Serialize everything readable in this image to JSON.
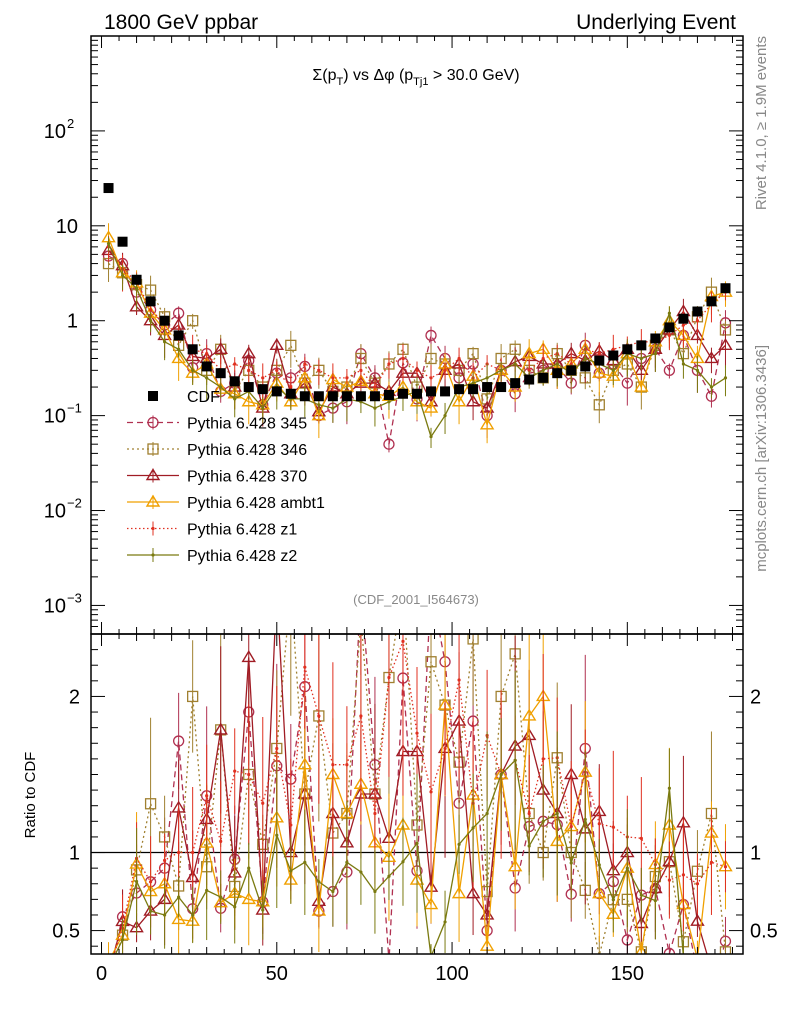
{
  "header": {
    "left": "1800 GeV ppbar",
    "right": "Underlying Event"
  },
  "side_labels": {
    "rivet": "Rivet 4.1.0, ≥ 1.9M events",
    "mcplots": "mcplots.cern.ch [arXiv:1306.3436]"
  },
  "chart_data": {
    "type": "line",
    "title": {
      "sigma": "Σ(p",
      "sub_t": "T",
      "mid": ") vs Δφ (p",
      "sub_tj1": "Tj1",
      "tail": " > 30.0 GeV)"
    },
    "analysis_tag": "(CDF_2001_I564673)",
    "xlabel": "",
    "ylabel_ratio": "Ratio to CDF",
    "xlim": [
      -3,
      183
    ],
    "ylim_main": [
      0.0005,
      1000
    ],
    "ylim_ratio": [
      0.35,
      2.4
    ],
    "yscale_main": "log",
    "x_ticks": [
      {
        "value": 0,
        "label": "0"
      },
      {
        "value": 50,
        "label": "50"
      },
      {
        "value": 100,
        "label": "100"
      },
      {
        "value": 150,
        "label": "150"
      }
    ],
    "y_ticks_main": [
      {
        "value": 0.001,
        "base": "10",
        "exp": "−3"
      },
      {
        "value": 0.01,
        "base": "10",
        "exp": "−2"
      },
      {
        "value": 0.1,
        "base": "10",
        "exp": "−1"
      },
      {
        "value": 1,
        "base": "1",
        "exp": ""
      },
      {
        "value": 10,
        "base": "10",
        "exp": ""
      },
      {
        "value": 100,
        "base": "10",
        "exp": "2"
      }
    ],
    "y_ticks_ratio": [
      {
        "value": 0.5,
        "label": "0.5"
      },
      {
        "value": 1,
        "label": "1"
      },
      {
        "value": 2,
        "label": "2"
      }
    ],
    "data": {
      "name": "CDF",
      "color": "#000000",
      "x": [
        2,
        6,
        10,
        14,
        18,
        22,
        26,
        30,
        34,
        38,
        42,
        46,
        50,
        54,
        58,
        62,
        66,
        70,
        74,
        78,
        82,
        86,
        90,
        94,
        98,
        102,
        106,
        110,
        114,
        118,
        122,
        126,
        130,
        134,
        138,
        142,
        146,
        150,
        154,
        158,
        162,
        166,
        170,
        174,
        178
      ],
      "y": [
        25,
        6.8,
        2.7,
        1.6,
        1.0,
        0.7,
        0.5,
        0.33,
        0.28,
        0.23,
        0.2,
        0.19,
        0.18,
        0.17,
        0.16,
        0.16,
        0.16,
        0.16,
        0.16,
        0.16,
        0.165,
        0.17,
        0.17,
        0.18,
        0.18,
        0.19,
        0.19,
        0.2,
        0.2,
        0.22,
        0.24,
        0.25,
        0.28,
        0.3,
        0.33,
        0.38,
        0.43,
        0.5,
        0.55,
        0.65,
        0.85,
        1.05,
        1.25,
        1.6,
        2.2
      ]
    },
    "series": [
      {
        "name": "Pythia 6.428 345",
        "color": "#b03050",
        "dash": "6,4",
        "marker": "circle",
        "values": [
          4.8,
          4.0,
          2.0,
          1.3,
          0.9,
          1.2,
          0.32,
          0.45,
          0.18,
          0.22,
          0.38,
          0.13,
          0.28,
          0.25,
          0.33,
          0.1,
          0.12,
          0.14,
          0.45,
          0.25,
          0.05,
          0.36,
          0.15,
          0.7,
          0.4,
          0.25,
          0.35,
          0.1,
          0.3,
          0.17,
          0.28,
          0.3,
          0.33,
          0.22,
          0.55,
          0.28,
          0.35,
          0.22,
          0.4,
          0.5,
          0.3,
          0.7,
          0.3,
          0.16,
          0.95
        ]
      },
      {
        "name": "Pythia 6.428 346",
        "color": "#a08030",
        "dash": "2,3",
        "marker": "square",
        "values": [
          4.0,
          3.2,
          2.4,
          2.1,
          1.1,
          0.55,
          1.0,
          0.3,
          0.5,
          0.18,
          0.3,
          0.2,
          0.3,
          0.55,
          0.22,
          0.3,
          0.18,
          0.2,
          0.4,
          0.22,
          0.35,
          0.5,
          0.2,
          0.4,
          0.35,
          0.3,
          0.45,
          0.15,
          0.4,
          0.5,
          0.3,
          0.25,
          0.45,
          0.3,
          0.25,
          0.13,
          0.3,
          0.35,
          0.2,
          0.55,
          0.8,
          0.45,
          1.1,
          2.0,
          0.8
        ]
      },
      {
        "name": "Pythia 6.428 370",
        "color": "#a01c24",
        "dash": "",
        "marker": "triangle",
        "values": [
          5.5,
          3.8,
          1.4,
          1.0,
          0.7,
          0.9,
          0.42,
          0.4,
          0.5,
          0.2,
          0.45,
          0.12,
          0.55,
          0.17,
          0.22,
          0.11,
          0.2,
          0.17,
          0.22,
          0.22,
          0.18,
          0.28,
          0.28,
          0.14,
          0.3,
          0.35,
          0.14,
          0.12,
          0.3,
          0.37,
          0.42,
          0.35,
          0.35,
          0.45,
          0.38,
          0.48,
          0.38,
          0.5,
          0.3,
          0.5,
          0.8,
          1.25,
          0.7,
          0.4,
          0.55
        ]
      },
      {
        "name": "Pythia 6.428 ambt1",
        "color": "#f0a000",
        "dash": "",
        "marker": "triangle",
        "values": [
          7.5,
          3.2,
          2.5,
          1.2,
          0.8,
          0.4,
          0.28,
          0.35,
          0.19,
          0.17,
          0.14,
          0.13,
          0.22,
          0.14,
          0.25,
          0.1,
          0.24,
          0.2,
          0.23,
          0.17,
          0.16,
          0.2,
          0.14,
          0.12,
          0.35,
          0.14,
          0.26,
          0.08,
          0.3,
          0.2,
          0.45,
          0.5,
          0.3,
          0.35,
          0.5,
          0.28,
          0.26,
          0.45,
          0.2,
          0.6,
          1.0,
          0.7,
          0.4,
          1.8,
          2.0
        ]
      },
      {
        "name": "Pythia 6.428 z1",
        "color": "#e03020",
        "dash": "1.5,2.5",
        "marker": "dot",
        "values": [
          6.0,
          3.5,
          2.6,
          1.3,
          0.95,
          0.7,
          0.5,
          0.45,
          0.3,
          0.35,
          0.3,
          0.25,
          0.3,
          0.2,
          0.35,
          0.3,
          0.25,
          0.25,
          0.3,
          0.2,
          0.35,
          0.4,
          0.3,
          0.25,
          0.3,
          0.4,
          0.25,
          0.35,
          0.3,
          0.35,
          0.3,
          0.4,
          0.45,
          0.35,
          0.5,
          0.45,
          0.5,
          0.55,
          0.6,
          0.6,
          0.7,
          0.9,
          1.0,
          1.5,
          2.0
        ]
      },
      {
        "name": "Pythia 6.428 z2",
        "color": "#7a7a10",
        "dash": "",
        "marker": "dot",
        "values": [
          6.5,
          3.0,
          2.2,
          1.0,
          0.6,
          0.5,
          0.3,
          0.25,
          0.2,
          0.15,
          0.18,
          0.12,
          0.2,
          0.15,
          0.15,
          0.13,
          0.12,
          0.15,
          0.14,
          0.12,
          0.14,
          0.16,
          0.18,
          0.06,
          0.1,
          0.2,
          0.22,
          0.25,
          0.3,
          0.35,
          0.25,
          0.3,
          0.35,
          0.28,
          0.4,
          0.35,
          0.3,
          0.45,
          0.4,
          0.45,
          1.2,
          0.35,
          0.3,
          0.2,
          0.25
        ]
      }
    ],
    "legend_position": "middle-left",
    "grid": false
  }
}
